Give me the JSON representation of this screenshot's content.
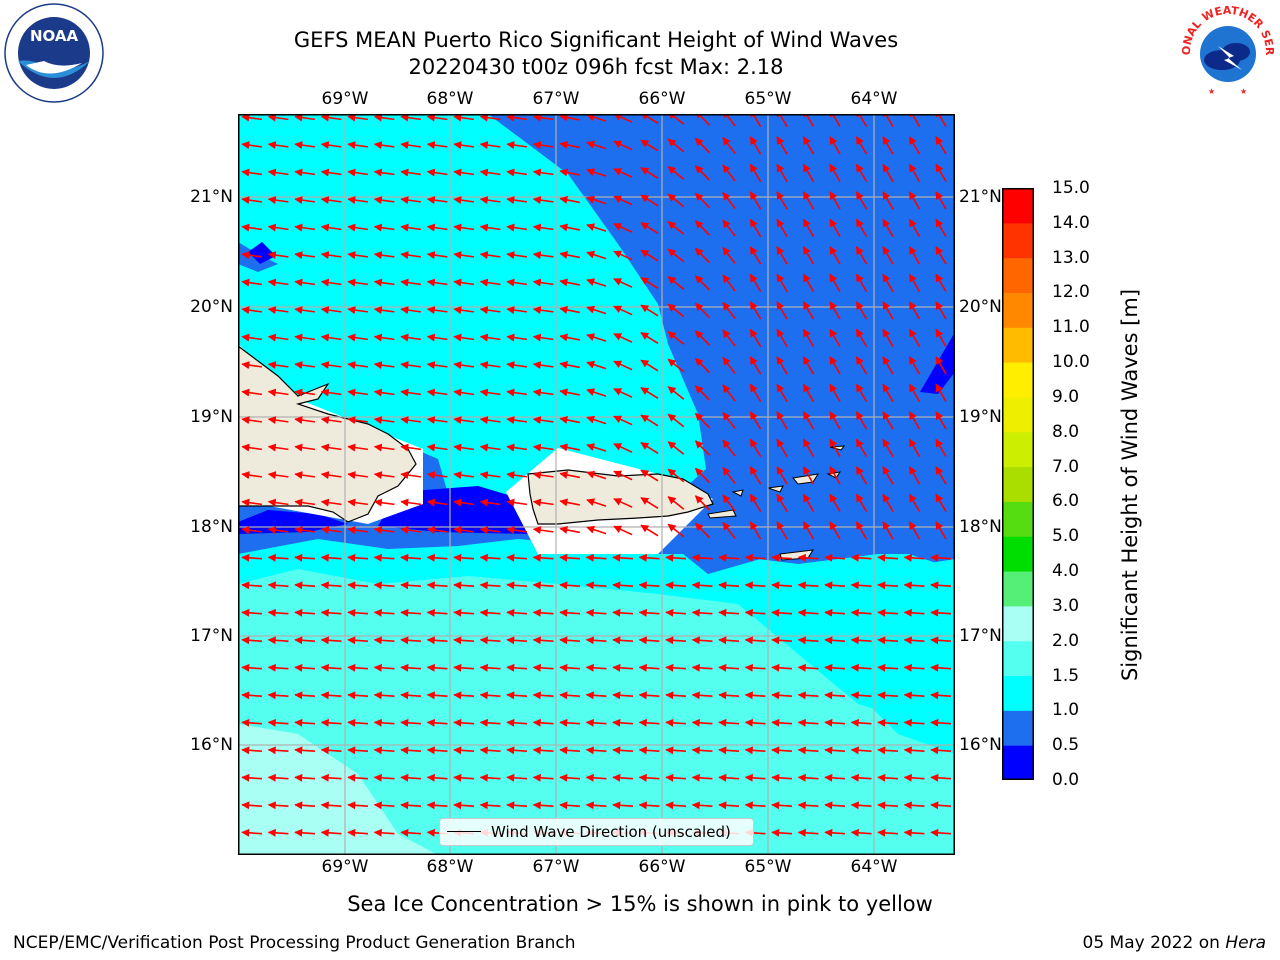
{
  "title": {
    "line1": "GEFS MEAN Puerto Rico Significant Height of Wind Waves",
    "line2": "20220430 t00z 096h fcst   Max: 2.18"
  },
  "logos": {
    "left": {
      "icon": "noaa-logo-icon",
      "text": "NOAA",
      "ring_text": "NATIONAL OCEANIC AND ATMOSPHERIC ADMINISTRATION · U.S. DEPARTMENT OF COMMERCE"
    },
    "right": {
      "icon": "national-weather-service-logo-icon",
      "ring_text": "NATIONAL WEATHER SERVICE"
    }
  },
  "map": {
    "lon_ticks": [
      "69°W",
      "68°W",
      "67°W",
      "66°W",
      "65°W",
      "64°W"
    ],
    "lat_ticks": [
      "21°N",
      "20°N",
      "19°N",
      "18°N",
      "17°N",
      "16°N"
    ],
    "lon_range": [
      -70.0,
      -63.25
    ],
    "lat_range": [
      15.05,
      21.75
    ],
    "grid": true,
    "land_color": "#efebdc",
    "arrow_color": "#ff0000"
  },
  "legend": {
    "label": "Wind Wave Direction (unscaled)",
    "placement": "lower center"
  },
  "colorbar": {
    "label": "Significant Height of Wind Waves [m]",
    "tick_labels": [
      "15.0",
      "14.0",
      "13.0",
      "12.0",
      "11.0",
      "10.0",
      "9.0",
      "8.0",
      "7.0",
      "6.0",
      "5.0",
      "4.0",
      "3.0",
      "2.0",
      "1.5",
      "1.0",
      "0.5",
      "0.0"
    ],
    "bins": [
      {
        "range": [
          0.0,
          0.5
        ],
        "color": "#0000ff"
      },
      {
        "range": [
          0.5,
          1.0
        ],
        "color": "#1e6ef0"
      },
      {
        "range": [
          1.0,
          1.5
        ],
        "color": "#00ffff"
      },
      {
        "range": [
          1.5,
          2.0
        ],
        "color": "#55fff0"
      },
      {
        "range": [
          2.0,
          3.0
        ],
        "color": "#aafff5"
      },
      {
        "range": [
          3.0,
          4.0
        ],
        "color": "#55ee77"
      },
      {
        "range": [
          4.0,
          5.0
        ],
        "color": "#00dd00"
      },
      {
        "range": [
          5.0,
          6.0
        ],
        "color": "#55dd11"
      },
      {
        "range": [
          6.0,
          7.0
        ],
        "color": "#aadd00"
      },
      {
        "range": [
          7.0,
          8.0
        ],
        "color": "#ccee00"
      },
      {
        "range": [
          8.0,
          9.0
        ],
        "color": "#eeee00"
      },
      {
        "range": [
          9.0,
          10.0
        ],
        "color": "#ffee00"
      },
      {
        "range": [
          10.0,
          11.0
        ],
        "color": "#ffbb00"
      },
      {
        "range": [
          11.0,
          12.0
        ],
        "color": "#ff8800"
      },
      {
        "range": [
          12.0,
          13.0
        ],
        "color": "#ff6600"
      },
      {
        "range": [
          13.0,
          14.0
        ],
        "color": "#ff3300"
      },
      {
        "range": [
          14.0,
          15.0
        ],
        "color": "#ff0000"
      }
    ]
  },
  "subtitle": "Sea Ice Concentration > 15% is shown in pink to yellow",
  "footer": {
    "left": "NCEP/EMC/Verification Post Processing Product Generation Branch",
    "date": "05 May 2022 on ",
    "machine": "Hera"
  }
}
